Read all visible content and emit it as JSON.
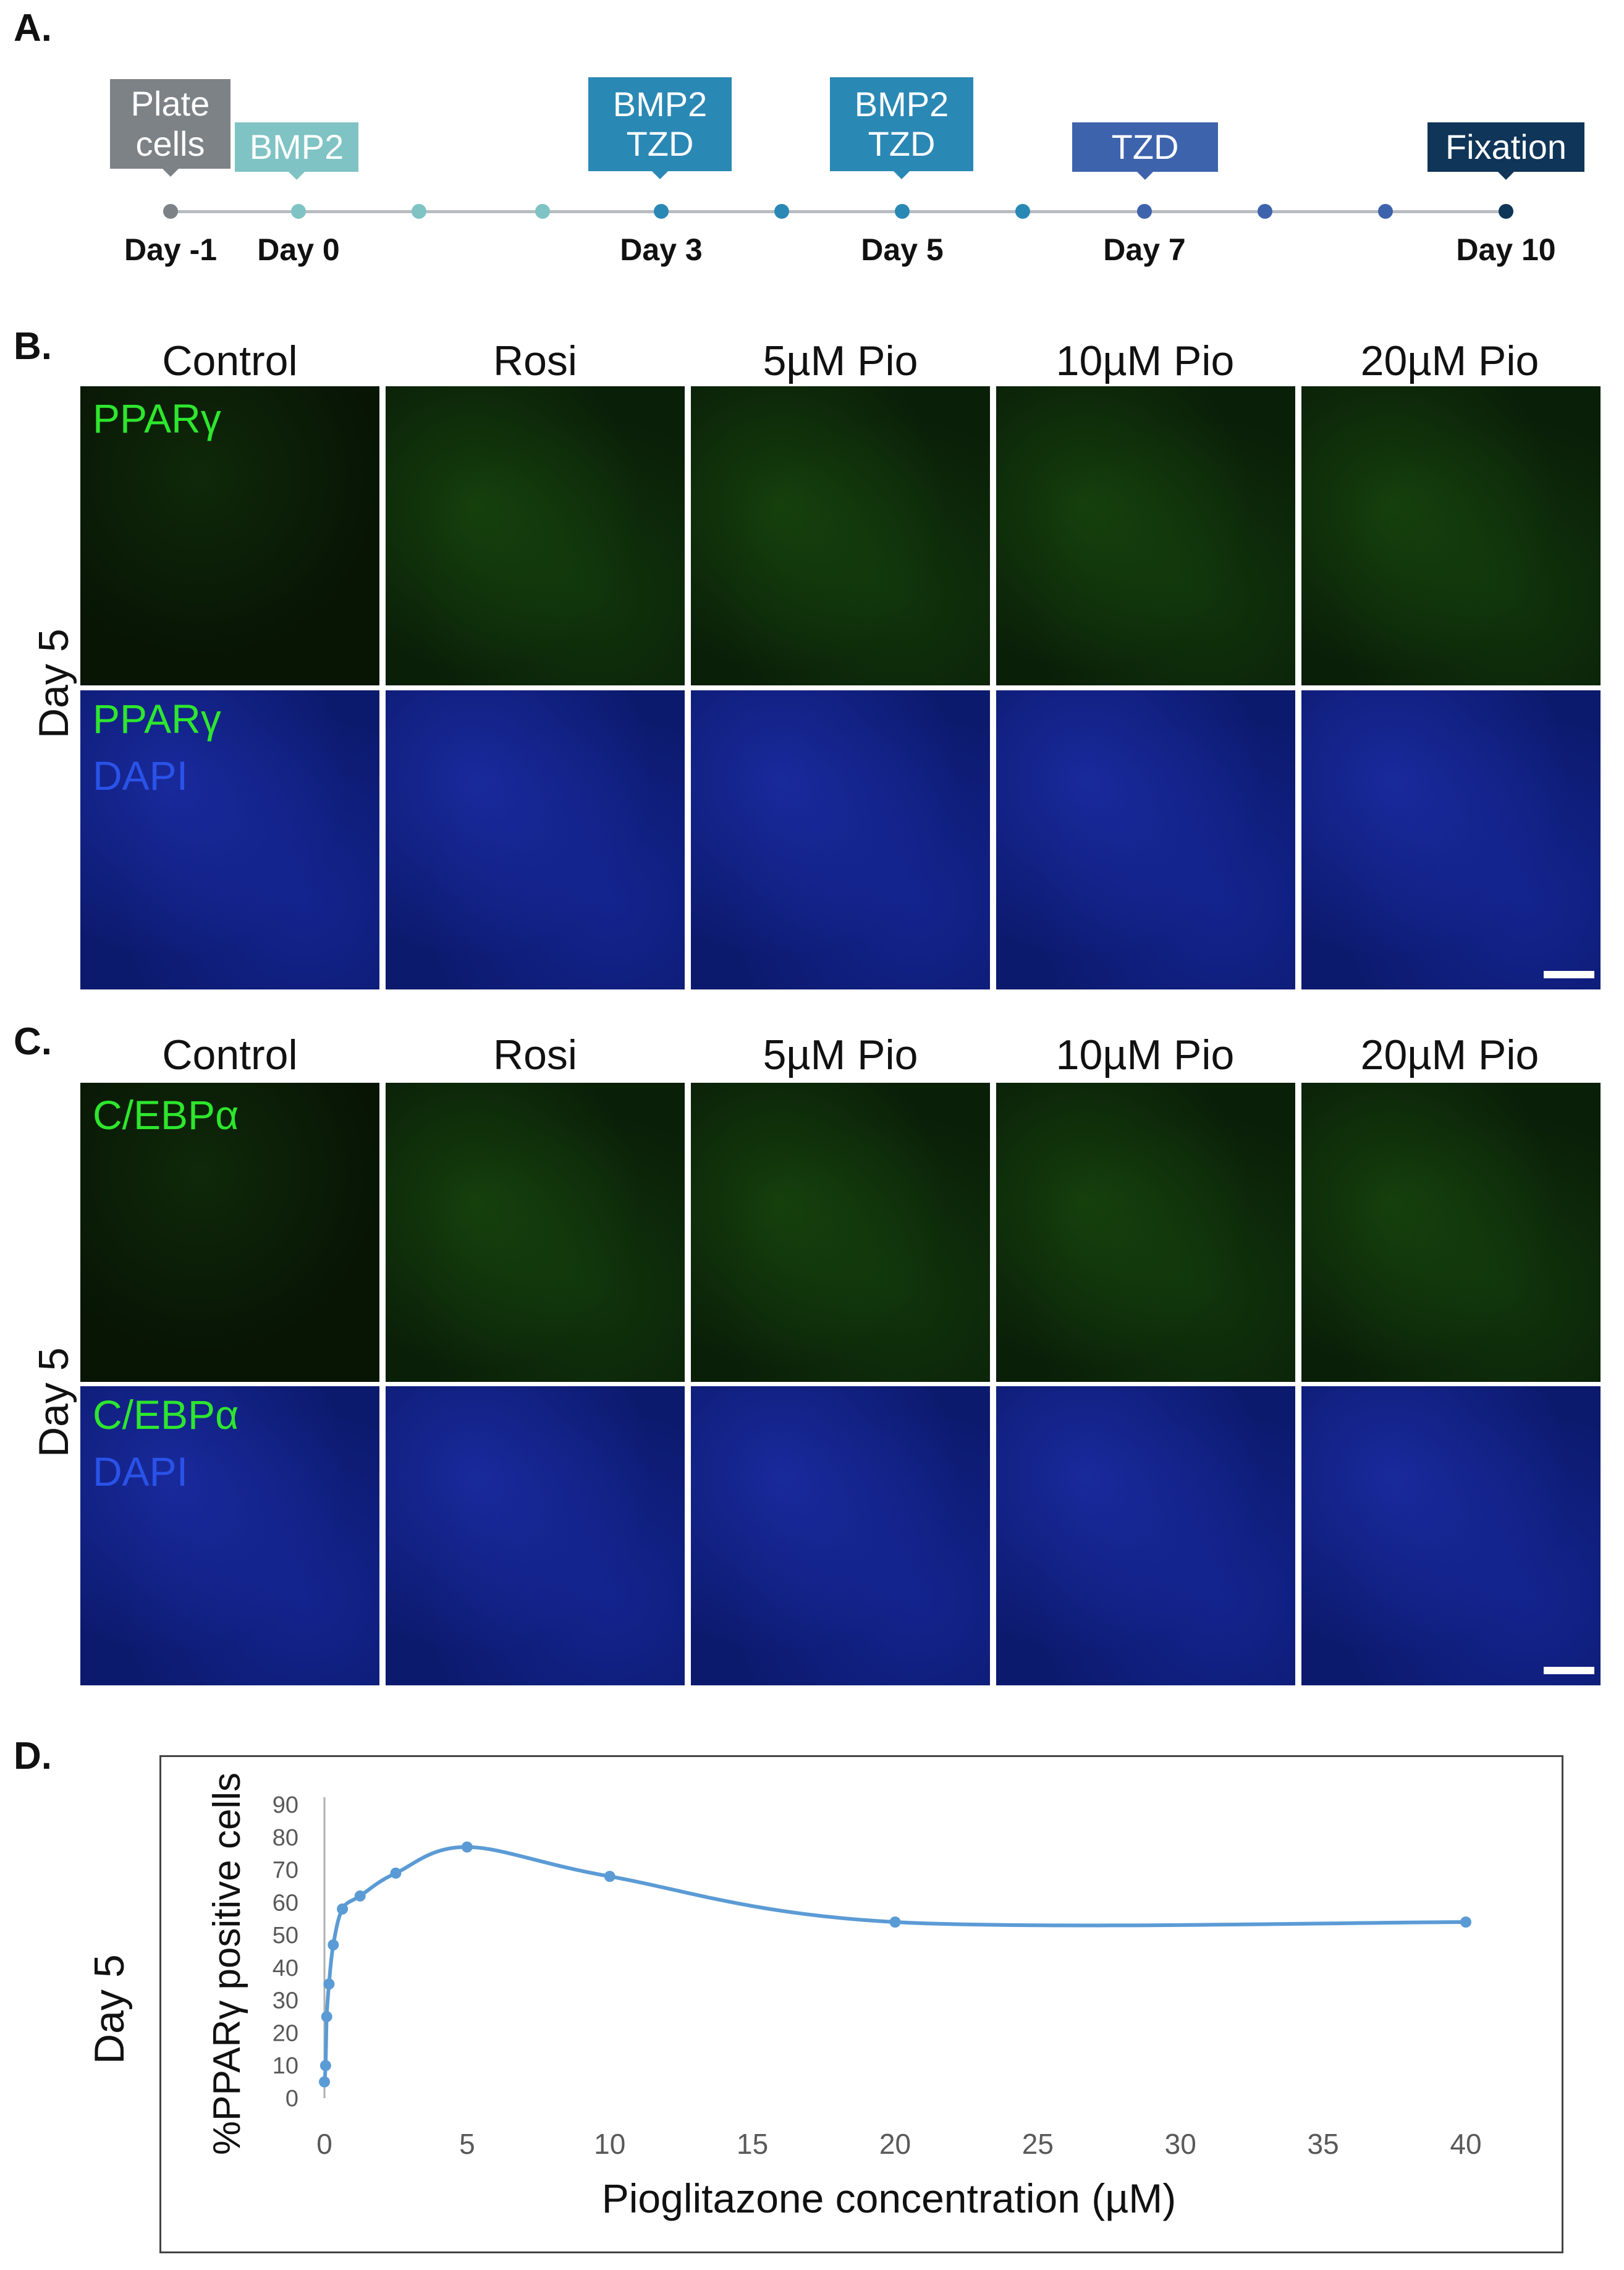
{
  "panels": {
    "a": "A.",
    "b": "B.",
    "c": "C.",
    "d": "D."
  },
  "timeline": {
    "events": [
      {
        "label_lines": [
          "Plate",
          "cells"
        ],
        "color": "#7d8287"
      },
      {
        "label_lines": [
          "BMP2"
        ],
        "color": "#7fc3c4"
      },
      {
        "label_lines": [
          "BMP2",
          "TZD"
        ],
        "color": "#2a88b5"
      },
      {
        "label_lines": [
          "BMP2",
          "TZD"
        ],
        "color": "#2a88b5"
      },
      {
        "label_lines": [
          "TZD"
        ],
        "color": "#3e63ad"
      },
      {
        "label_lines": [
          "Fixation"
        ],
        "color": "#0f3558"
      }
    ],
    "days": [
      "Day -1",
      "Day 0",
      "Day 3",
      "Day 5",
      "Day 7",
      "Day 10"
    ],
    "line_color": "#b8bcc0"
  },
  "micrographs": {
    "columns": [
      "Control",
      "Rosi",
      "5µM Pio",
      "10µM Pio",
      "20µM Pio"
    ],
    "b": {
      "row_label": "Day 5",
      "top_label": "PPARγ",
      "bottom_labels": [
        "PPARγ",
        "DAPI"
      ]
    },
    "c": {
      "row_label": "Day 5",
      "top_label": "C/EBPα",
      "bottom_labels": [
        "C/EBPα",
        "DAPI"
      ]
    },
    "colors": {
      "green": "#2ee62e",
      "blue": "#2a52e8"
    }
  },
  "chart_data": {
    "type": "line",
    "row_label": "Day 5",
    "xlabel": "Pioglitazone concentration (µM)",
    "ylabel": "%PPARγ positive cells",
    "xlim": [
      0,
      40
    ],
    "ylim": [
      0,
      90
    ],
    "xticks": [
      "0",
      "5",
      "10",
      "15",
      "20",
      "25",
      "30",
      "35",
      "40"
    ],
    "yticks": [
      "0",
      "10",
      "20",
      "30",
      "40",
      "50",
      "60",
      "70",
      "80",
      "90"
    ],
    "x": [
      0,
      0.04,
      0.08,
      0.16,
      0.31,
      0.63,
      1.25,
      2.5,
      5,
      10,
      20,
      40
    ],
    "y": [
      5,
      10,
      25,
      35,
      47,
      58,
      62,
      69,
      77,
      68,
      54,
      54
    ],
    "line_color": "#5b9bd5"
  }
}
